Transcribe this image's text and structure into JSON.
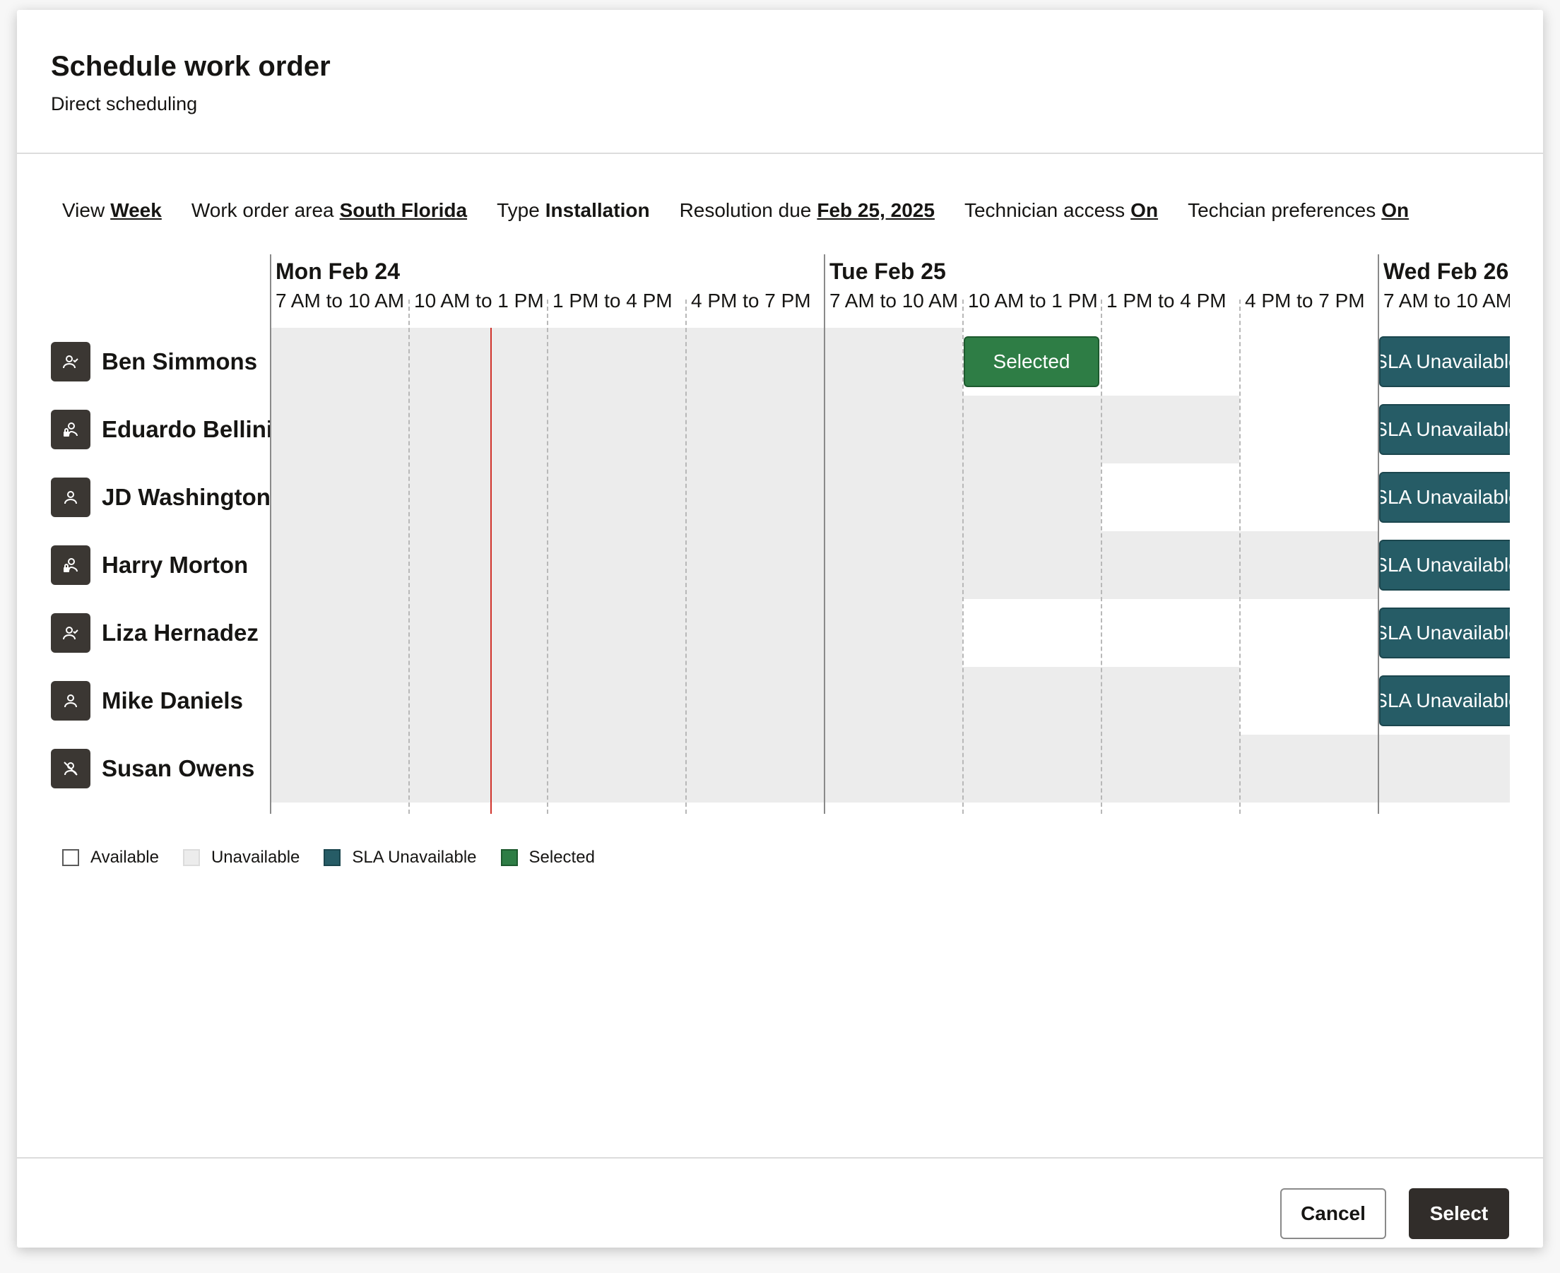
{
  "dialog": {
    "title": "Schedule work order",
    "subtitle": "Direct scheduling"
  },
  "filters": [
    {
      "label": "View",
      "value": "Week",
      "link": true
    },
    {
      "label": "Work order area",
      "value": "South Florida",
      "link": true
    },
    {
      "label": "Type",
      "value": "Installation",
      "link": false
    },
    {
      "label": "Resolution due",
      "value": "Feb 25, 2025",
      "link": true
    },
    {
      "label": "Technician access",
      "value": "On",
      "link": true
    },
    {
      "label": "Techcian preferences",
      "value": "On",
      "link": true
    }
  ],
  "calendar": {
    "days": [
      "Mon Feb 24",
      "Tue Feb 25",
      "Wed Feb 26"
    ],
    "slots": [
      "7 AM to 10 AM",
      "10 AM to 1 PM",
      "1 PM to 4 PM",
      "4 PM to 7 PM"
    ],
    "technicians": [
      {
        "name": "Ben Simmons",
        "icon": "person-check-icon"
      },
      {
        "name": "Eduardo Bellini",
        "icon": "person-lock-icon"
      },
      {
        "name": "JD Washington",
        "icon": "person-icon"
      },
      {
        "name": "Harry Morton",
        "icon": "person-lock-icon"
      },
      {
        "name": "Liza Hernadez",
        "icon": "person-check-icon"
      },
      {
        "name": "Mike Daniels",
        "icon": "person-icon"
      },
      {
        "name": "Susan Owens",
        "icon": "person-blocked-icon"
      }
    ],
    "availability": [
      [
        "U",
        "U",
        "U",
        "U",
        "U",
        "S",
        "A",
        "A",
        "L"
      ],
      [
        "U",
        "U",
        "U",
        "U",
        "U",
        "U",
        "U",
        "A",
        "L"
      ],
      [
        "U",
        "U",
        "U",
        "U",
        "U",
        "U",
        "A",
        "A",
        "L"
      ],
      [
        "U",
        "U",
        "U",
        "U",
        "U",
        "U",
        "U",
        "U",
        "L"
      ],
      [
        "U",
        "U",
        "U",
        "U",
        "U",
        "A",
        "A",
        "A",
        "L"
      ],
      [
        "U",
        "U",
        "U",
        "U",
        "U",
        "U",
        "U",
        "A",
        "L"
      ],
      [
        "U",
        "U",
        "U",
        "U",
        "U",
        "U",
        "U",
        "U",
        "U"
      ]
    ],
    "selected_label": "Selected",
    "sla_label": "SLA Unavailable",
    "colors": {
      "unavailable": "#ececec",
      "sla_unavailable": "#265c66",
      "selected": "#2e7d45",
      "now_line": "#d0322b"
    }
  },
  "legend": [
    {
      "key": "avail",
      "label": "Available"
    },
    {
      "key": "unavailable",
      "label": "Unavailable"
    },
    {
      "key": "sla",
      "label": "SLA Unavailable"
    },
    {
      "key": "sel",
      "label": "Selected"
    }
  ],
  "footer": {
    "cancel_label": "Cancel",
    "select_label": "Select"
  }
}
